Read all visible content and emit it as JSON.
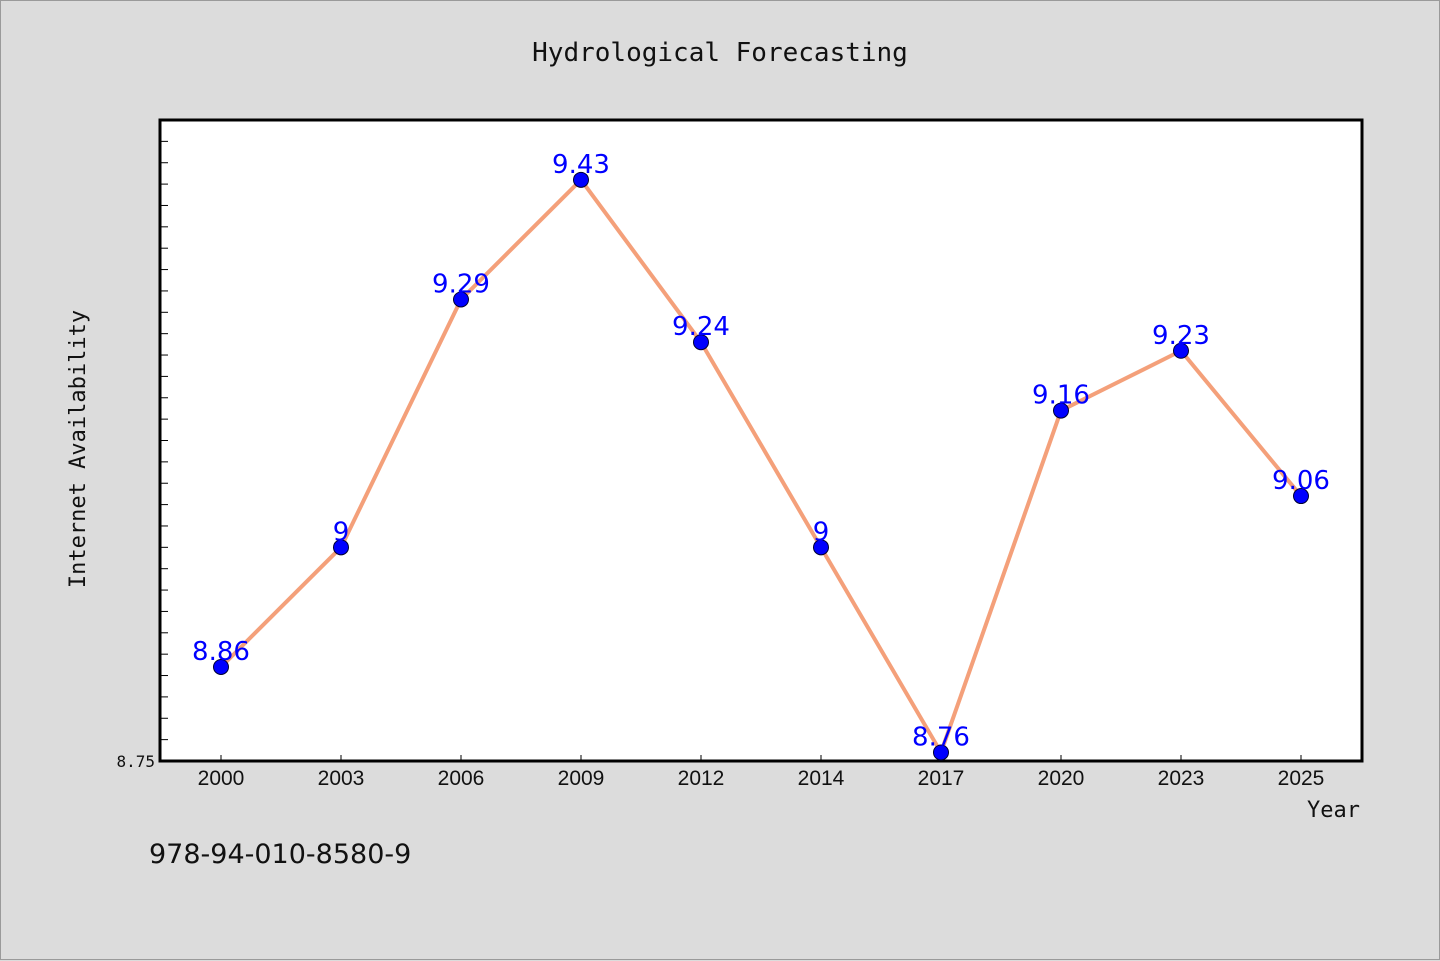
{
  "chart_data": {
    "type": "line",
    "title": "Hydrological Forecasting",
    "xlabel": "Year",
    "ylabel": "Internet Availability",
    "categories": [
      "2000",
      "2003",
      "2006",
      "2009",
      "2012",
      "2014",
      "2017",
      "2020",
      "2023",
      "2025"
    ],
    "series": [
      {
        "values": [
          8.86,
          9,
          9.29,
          9.43,
          9.24,
          9,
          8.76,
          9.16,
          9.23,
          9.06
        ],
        "labels": [
          "8.86",
          "9",
          "9.29",
          "9.43",
          "9.24",
          "9",
          "8.76",
          "9.16",
          "9.23",
          "9.06"
        ]
      }
    ],
    "ylim": [
      8.75,
      9.5
    ],
    "y_tick_labels": [
      "8.75"
    ],
    "grid": false,
    "colors": {
      "line": "#f4a07a",
      "marker": "#0000ff",
      "label": "#0000ff"
    }
  },
  "footer_text": "978-94-010-8580-9"
}
